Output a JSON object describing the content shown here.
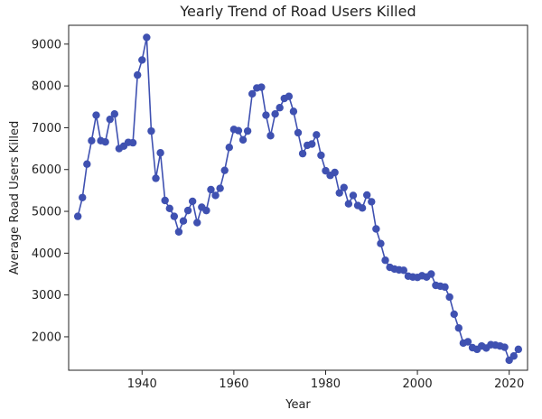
{
  "chart_data": {
    "type": "line",
    "title": "Yearly Trend of Road Users Killed",
    "xlabel": "Year",
    "ylabel": "Average Road Users Killed",
    "xlim": [
      1924,
      2024
    ],
    "ylim": [
      1200,
      9450
    ],
    "xticks": [
      1940,
      1960,
      1980,
      2000,
      2020
    ],
    "yticks": [
      2000,
      3000,
      4000,
      5000,
      6000,
      7000,
      8000,
      9000
    ],
    "grid": false,
    "series": [
      {
        "color": "#3f51b1",
        "marker": "circle",
        "x": [
          1926,
          1927,
          1928,
          1929,
          1930,
          1931,
          1932,
          1933,
          1934,
          1935,
          1936,
          1937,
          1938,
          1939,
          1940,
          1941,
          1942,
          1943,
          1944,
          1945,
          1946,
          1947,
          1948,
          1949,
          1950,
          1951,
          1952,
          1953,
          1954,
          1955,
          1956,
          1957,
          1958,
          1959,
          1960,
          1961,
          1962,
          1963,
          1964,
          1965,
          1966,
          1967,
          1968,
          1969,
          1970,
          1971,
          1972,
          1973,
          1974,
          1975,
          1976,
          1977,
          1978,
          1979,
          1980,
          1981,
          1982,
          1983,
          1984,
          1985,
          1986,
          1987,
          1988,
          1989,
          1990,
          1991,
          1992,
          1993,
          1994,
          1995,
          1996,
          1997,
          1998,
          1999,
          2000,
          2001,
          2002,
          2003,
          2004,
          2005,
          2006,
          2007,
          2008,
          2009,
          2010,
          2011,
          2012,
          2013,
          2014,
          2015,
          2016,
          2017,
          2018,
          2019,
          2020,
          2021,
          2022
        ],
        "y": [
          4880,
          5330,
          6130,
          6690,
          7300,
          6690,
          6660,
          7200,
          7330,
          6500,
          6560,
          6650,
          6640,
          8260,
          8620,
          9160,
          6920,
          5790,
          6400,
          5260,
          5070,
          4880,
          4510,
          4770,
          5020,
          5240,
          4730,
          5100,
          5020,
          5520,
          5380,
          5550,
          5980,
          6530,
          6960,
          6930,
          6710,
          6920,
          7810,
          7950,
          7970,
          7300,
          6810,
          7330,
          7480,
          7700,
          7750,
          7390,
          6880,
          6380,
          6580,
          6610,
          6830,
          6340,
          5970,
          5860,
          5930,
          5440,
          5570,
          5180,
          5380,
          5140,
          5080,
          5390,
          5230,
          4580,
          4230,
          3830,
          3660,
          3620,
          3600,
          3590,
          3450,
          3430,
          3420,
          3460,
          3430,
          3500,
          3230,
          3210,
          3190,
          2950,
          2540,
          2210,
          1850,
          1880,
          1740,
          1700,
          1780,
          1730,
          1810,
          1800,
          1780,
          1750,
          1440,
          1540,
          1700
        ]
      }
    ]
  }
}
